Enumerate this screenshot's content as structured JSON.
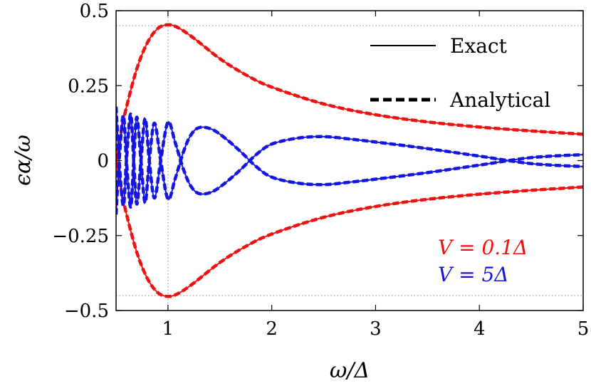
{
  "chart_data": {
    "type": "line",
    "xlabel": "ω/Δ",
    "ylabel": "ϵα/ω",
    "xlim": [
      0.5,
      5
    ],
    "ylim": [
      -0.5,
      0.5
    ],
    "x_ticks": [
      {
        "value": 1,
        "label": "1"
      },
      {
        "value": 2,
        "label": "2"
      },
      {
        "value": 3,
        "label": "3"
      },
      {
        "value": 4,
        "label": "4"
      },
      {
        "value": 5,
        "label": "5"
      }
    ],
    "y_ticks": [
      {
        "value": 0.5,
        "label": "0.5"
      },
      {
        "value": 0.25,
        "label": "0.25"
      },
      {
        "value": 0,
        "label": "0"
      },
      {
        "value": -0.25,
        "label": "−0.25"
      },
      {
        "value": -0.5,
        "label": "−0.5"
      }
    ],
    "reference_lines": {
      "horizontal": [
        0.45,
        -0.45
      ],
      "vertical": [
        1
      ]
    },
    "legend": {
      "placement": "top-right",
      "entries": [
        {
          "label": "Exact",
          "style": "solid"
        },
        {
          "label": "Analytical",
          "style": "dashed"
        }
      ]
    },
    "annotations": [
      {
        "text": "V = 0.1Δ",
        "color": "#ee1111"
      },
      {
        "text": "V = 5Δ",
        "color": "#1515e0"
      }
    ],
    "colors": {
      "red": "#ee1111",
      "blue": "#1515e0"
    },
    "series": [
      {
        "group": "V = 0.1Δ",
        "color": "#ee1111",
        "x": [
          0.5,
          0.55,
          0.6,
          0.7,
          0.8,
          0.9,
          1.0,
          1.1,
          1.25,
          1.5,
          1.75,
          2.0,
          2.5,
          3.0,
          3.5,
          4.0,
          4.5,
          5.0
        ],
        "y": [
          0.0,
          0.097,
          0.178,
          0.306,
          0.392,
          0.44,
          0.453,
          0.443,
          0.408,
          0.34,
          0.286,
          0.245,
          0.189,
          0.153,
          0.129,
          0.112,
          0.099,
          0.088
        ]
      },
      {
        "group": "V = 0.1Δ",
        "color": "#ee1111",
        "x": [
          0.5,
          0.55,
          0.6,
          0.7,
          0.8,
          0.9,
          1.0,
          1.1,
          1.25,
          1.5,
          1.75,
          2.0,
          2.5,
          3.0,
          3.5,
          4.0,
          4.5,
          5.0
        ],
        "y": [
          0.0,
          -0.097,
          -0.178,
          -0.306,
          -0.392,
          -0.44,
          -0.453,
          -0.443,
          -0.408,
          -0.34,
          -0.286,
          -0.245,
          -0.189,
          -0.153,
          -0.129,
          -0.112,
          -0.099,
          -0.088
        ]
      },
      {
        "group": "V = 5Δ",
        "color": "#1515e0",
        "x": [
          0.5,
          0.53,
          0.57,
          0.6,
          0.64,
          0.67,
          0.7,
          0.74,
          0.78,
          0.82,
          0.87,
          0.93,
          1.0,
          1.07,
          1.15,
          1.22,
          1.3,
          1.42,
          1.55,
          1.7,
          1.85,
          2.0,
          2.25,
          2.5,
          2.75,
          3.0,
          3.5,
          4.0,
          4.5,
          5.0
        ],
        "y": [
          0.18,
          0.0,
          -0.15,
          0.0,
          0.155,
          0.0,
          -0.145,
          0.0,
          0.14,
          0.0,
          -0.125,
          0.0,
          0.128,
          0.06,
          -0.03,
          -0.085,
          -0.11,
          -0.105,
          -0.075,
          -0.03,
          0.02,
          0.055,
          0.075,
          0.08,
          0.072,
          0.062,
          0.04,
          0.015,
          -0.01,
          -0.02
        ]
      },
      {
        "group": "V = 5Δ",
        "color": "#1515e0",
        "x": [
          0.5,
          0.53,
          0.57,
          0.6,
          0.64,
          0.67,
          0.7,
          0.74,
          0.78,
          0.82,
          0.87,
          0.93,
          1.0,
          1.07,
          1.15,
          1.22,
          1.3,
          1.42,
          1.55,
          1.7,
          1.85,
          2.0,
          2.25,
          2.5,
          2.75,
          3.0,
          3.5,
          4.0,
          4.5,
          5.0
        ],
        "y": [
          -0.18,
          0.0,
          0.15,
          0.0,
          -0.155,
          0.0,
          0.145,
          0.0,
          -0.14,
          0.0,
          0.125,
          0.0,
          -0.128,
          -0.06,
          0.03,
          0.085,
          0.11,
          0.105,
          0.075,
          0.03,
          -0.02,
          -0.055,
          -0.075,
          -0.08,
          -0.072,
          -0.062,
          -0.04,
          -0.015,
          0.01,
          0.02
        ]
      }
    ]
  }
}
